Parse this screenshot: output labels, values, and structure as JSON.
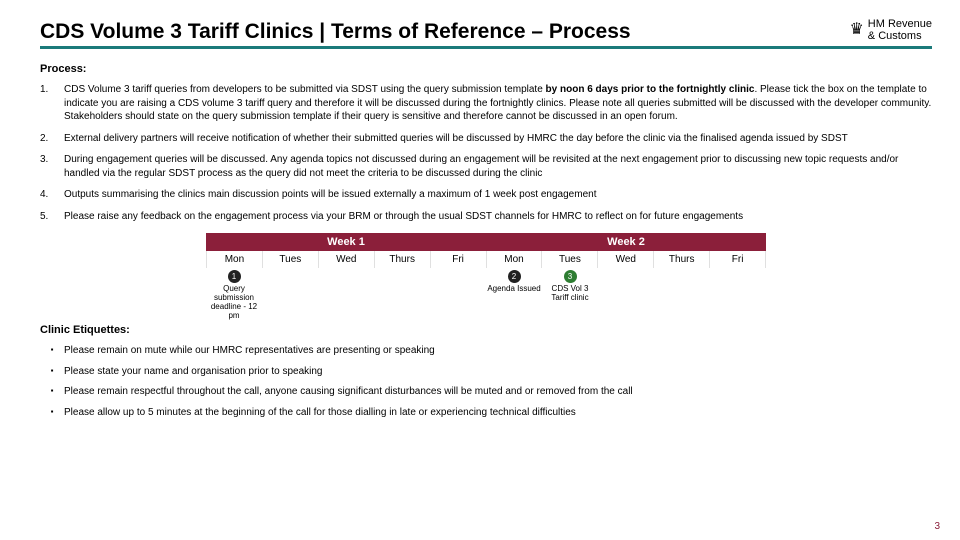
{
  "colors": {
    "underline": "#1b7a7a",
    "week_bg": "#8b1f3a",
    "dot_dark": "#222222",
    "dot_green": "#2e7d32",
    "page_num": "#8b1f3a"
  },
  "header": {
    "title": "CDS Volume 3 Tariff Clinics | Terms of Reference – Process",
    "logo_line1": "HM Revenue",
    "logo_line2": "& Customs"
  },
  "process": {
    "heading": "Process:",
    "items": [
      {
        "num": "1.",
        "text_pre": "CDS Volume 3 tariff queries from developers to be submitted via SDST using the query submission template ",
        "text_bold": "by noon 6 days prior to the fortnightly clinic",
        "text_post": ". Please tick the box on the template to indicate you are raising a CDS volume 3 tariff query and therefore it will be discussed during the fortnightly clinics. Please note all queries submitted will be discussed with the developer community. Stakeholders should state on the query submission template if their query is sensitive and therefore cannot be discussed in an open forum."
      },
      {
        "num": "2.",
        "text_pre": "External delivery partners will receive notification of whether their submitted queries will be discussed by HMRC the day before the clinic via the finalised agenda issued by SDST",
        "text_bold": "",
        "text_post": ""
      },
      {
        "num": "3.",
        "text_pre": "During engagement queries will be discussed. Any agenda topics not discussed during an engagement will be revisited at the next engagement prior to discussing new topic requests and/or handled via the regular SDST process as the query did not meet the criteria to be discussed during the clinic",
        "text_bold": "",
        "text_post": ""
      },
      {
        "num": "4.",
        "text_pre": "Outputs summarising the clinics main discussion points will be issued externally a maximum of 1 week post engagement",
        "text_bold": "",
        "text_post": ""
      },
      {
        "num": "5.",
        "text_pre": "Please raise any feedback on the engagement process via your BRM or through the usual SDST channels for HMRC to reflect on for future engagements",
        "text_bold": "",
        "text_post": ""
      }
    ]
  },
  "timeline": {
    "weeks": [
      "Week 1",
      "Week 2"
    ],
    "days": [
      "Mon",
      "Tues",
      "Wed",
      "Thurs",
      "Fri",
      "Mon",
      "Tues",
      "Wed",
      "Thurs",
      "Fri"
    ],
    "markers": [
      {
        "col": 0,
        "num": "1",
        "label": "Query submission deadline - 12 pm",
        "dot": "dark"
      },
      {
        "col": 5,
        "num": "2",
        "label": "Agenda Issued",
        "dot": "dark"
      },
      {
        "col": 6,
        "num": "3",
        "label": "CDS Vol 3 Tariff clinic",
        "dot": "green"
      }
    ]
  },
  "etiquettes": {
    "heading": "Clinic Etiquettes:",
    "items": [
      "Please remain on mute while our HMRC representatives are presenting or speaking",
      "Please state your name and organisation prior to speaking",
      "Please remain respectful throughout the call, anyone causing significant disturbances will be muted and or removed from the call",
      "Please allow up to 5 minutes at the beginning of the call for those dialling in late or experiencing technical difficulties"
    ]
  },
  "page_number": "3"
}
